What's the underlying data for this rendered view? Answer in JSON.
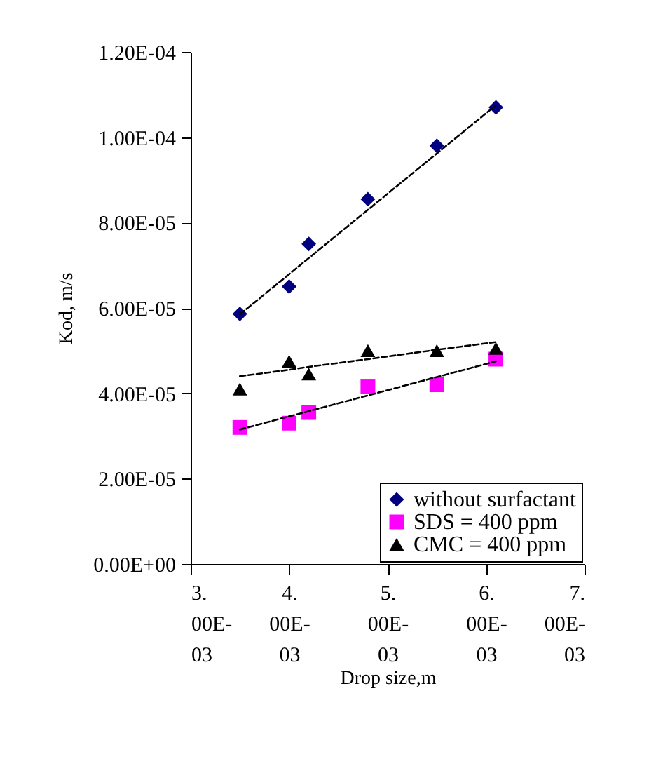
{
  "chart_data": {
    "type": "scatter",
    "xlabel": "Drop size,m",
    "ylabel": "Kod, m/s",
    "xlim": [
      0.003,
      0.007
    ],
    "ylim": [
      0,
      0.00012
    ],
    "xticks": [
      {
        "value": 0.003,
        "label": "3.00E-03"
      },
      {
        "value": 0.004,
        "label": "4.00E-03"
      },
      {
        "value": 0.005,
        "label": "5.00E-03"
      },
      {
        "value": 0.006,
        "label": "6.00E-03"
      },
      {
        "value": 0.007,
        "label": "7.00E-03"
      }
    ],
    "yticks": [
      {
        "value": 0,
        "label": "0.00E+00"
      },
      {
        "value": 2e-05,
        "label": "2.00E-05"
      },
      {
        "value": 4e-05,
        "label": "4.00E-05"
      },
      {
        "value": 6e-05,
        "label": "6.00E-05"
      },
      {
        "value": 8e-05,
        "label": "8.00E-05"
      },
      {
        "value": 0.0001,
        "label": "1.00E-04"
      },
      {
        "value": 0.00012,
        "label": "1.20E-04"
      }
    ],
    "x": [
      0.0035,
      0.004,
      0.0042,
      0.0048,
      0.0055,
      0.0061
    ],
    "grid": false,
    "legend": "bottom right",
    "series": [
      {
        "name": "without surfactant",
        "color": "#000080",
        "marker": "diamond",
        "values": [
          5.86e-05,
          6.5e-05,
          7.5e-05,
          8.55e-05,
          9.8e-05,
          0.000107
        ]
      },
      {
        "name": "SDS = 400 ppm",
        "color": "#ff00ff",
        "marker": "square",
        "values": [
          3.2e-05,
          3.3e-05,
          3.55e-05,
          4.15e-05,
          4.2e-05,
          4.8e-05
        ]
      },
      {
        "name": "CMC = 400 ppm",
        "color": "#000000",
        "marker": "triangle",
        "values": [
          4.1e-05,
          4.75e-05,
          4.45e-05,
          5e-05,
          5e-05,
          5.05e-05
        ]
      },
      {
        "type": "line",
        "color": "#000000",
        "line_style": "dashed",
        "values": [
          5.85e-05,
          6.79e-05,
          7.17e-05,
          8.3e-05,
          9.62e-05,
          0.0001075
        ]
      },
      {
        "type": "line",
        "color": "#000000",
        "line_style": "dashed",
        "values": [
          3.15e-05,
          3.46e-05,
          3.58e-05,
          3.95e-05,
          4.38e-05,
          4.75e-05
        ]
      },
      {
        "type": "line",
        "color": "#000000",
        "line_style": "dashed",
        "values": [
          4.4e-05,
          4.55e-05,
          4.62e-05,
          4.8e-05,
          5.02e-05,
          5.2e-05
        ]
      }
    ]
  }
}
